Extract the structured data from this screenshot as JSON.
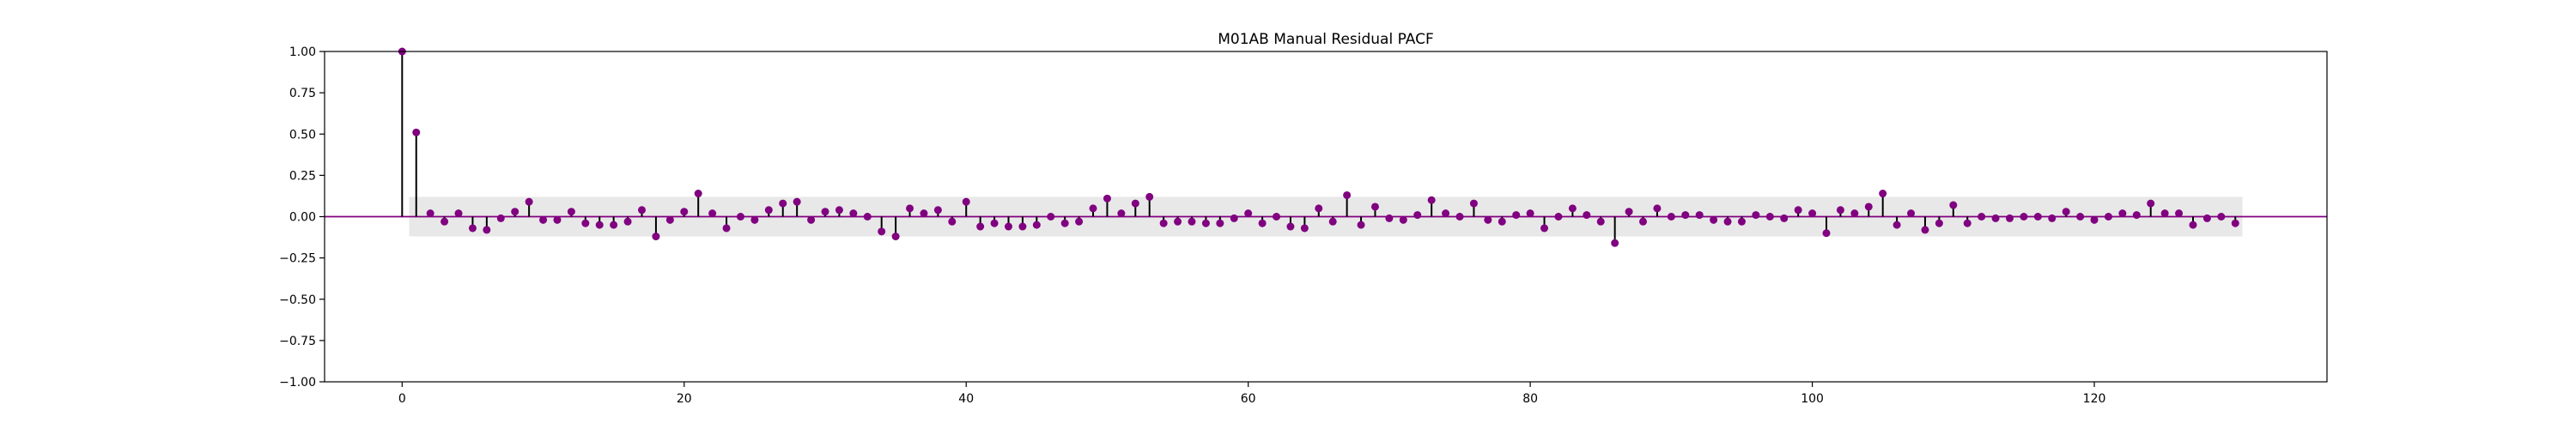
{
  "chart_data": {
    "type": "stem",
    "title": "M01AB Manual Residual PACF",
    "xlabel": "",
    "ylabel": "",
    "xlim": [
      -5.5,
      136.5
    ],
    "ylim": [
      -1.0,
      1.0
    ],
    "xticks": [
      0,
      20,
      40,
      60,
      80,
      100,
      120
    ],
    "yticks": [
      -1.0,
      -0.75,
      -0.5,
      -0.25,
      0.0,
      0.25,
      0.5,
      0.75,
      1.0
    ],
    "ytick_labels": [
      "−1.00",
      "−0.75",
      "−0.50",
      "−0.25",
      "0.00",
      "0.25",
      "0.50",
      "0.75",
      "1.00"
    ],
    "confidence_band": {
      "x": [
        0.5,
        130.5
      ],
      "lower": -0.12,
      "upper": 0.12,
      "color": "#e8e8e8"
    },
    "colors": {
      "marker": "#800080",
      "baseline": "#800080",
      "stem": "#000000"
    },
    "grid": false,
    "series": [
      {
        "x": [
          0,
          1,
          2,
          3,
          4,
          5,
          6,
          7,
          8,
          9,
          10,
          11,
          12,
          13,
          14,
          15,
          16,
          17,
          18,
          19,
          20,
          21,
          22,
          23,
          24,
          25,
          26,
          27,
          28,
          29,
          30,
          31,
          32,
          33,
          34,
          35,
          36,
          37,
          38,
          39,
          40,
          41,
          42,
          43,
          44,
          45,
          46,
          47,
          48,
          49,
          50,
          51,
          52,
          53,
          54,
          55,
          56,
          57,
          58,
          59,
          60,
          61,
          62,
          63,
          64,
          65,
          66,
          67,
          68,
          69,
          70,
          71,
          72,
          73,
          74,
          75,
          76,
          77,
          78,
          79,
          80,
          81,
          82,
          83,
          84,
          85,
          86,
          87,
          88,
          89,
          90,
          91,
          92,
          93,
          94,
          95,
          96,
          97,
          98,
          99,
          100,
          101,
          102,
          103,
          104,
          105,
          106,
          107,
          108,
          109,
          110,
          111,
          112,
          113,
          114,
          115,
          116,
          117,
          118,
          119,
          120,
          121,
          122,
          123,
          124,
          125,
          126,
          127,
          128,
          129,
          130
        ],
        "y": [
          1.0,
          0.51,
          0.02,
          -0.03,
          0.02,
          -0.07,
          -0.08,
          -0.01,
          0.03,
          0.09,
          -0.02,
          -0.02,
          0.03,
          -0.04,
          -0.05,
          -0.05,
          -0.03,
          0.04,
          -0.12,
          -0.02,
          0.03,
          0.14,
          0.02,
          -0.07,
          0.0,
          -0.02,
          0.04,
          0.08,
          0.09,
          -0.02,
          0.03,
          0.04,
          0.02,
          0.0,
          -0.09,
          -0.12,
          0.05,
          0.02,
          0.04,
          -0.03,
          0.09,
          -0.06,
          -0.04,
          -0.06,
          -0.06,
          -0.05,
          0.0,
          -0.04,
          -0.03,
          0.05,
          0.11,
          0.02,
          0.08,
          0.12,
          -0.04,
          -0.03,
          -0.03,
          -0.04,
          -0.04,
          -0.01,
          0.02,
          -0.04,
          0.0,
          -0.06,
          -0.07,
          0.05,
          -0.03,
          0.13,
          -0.05,
          0.06,
          -0.01,
          -0.02,
          0.01,
          0.1,
          0.02,
          0.0,
          0.08,
          -0.02,
          -0.03,
          0.01,
          0.02,
          -0.07,
          0.0,
          0.05,
          0.01,
          -0.03,
          -0.16,
          0.03,
          -0.03,
          0.05,
          0.0,
          0.01,
          0.01,
          -0.02,
          -0.03,
          -0.03,
          0.01,
          0.0,
          -0.01,
          0.04,
          0.02,
          -0.1,
          0.04,
          0.02,
          0.06,
          0.14,
          -0.05,
          0.02,
          -0.08,
          -0.04,
          0.07,
          -0.04,
          0.0,
          -0.01,
          -0.01,
          0.0,
          0.0,
          -0.01,
          0.03,
          0.0,
          -0.02,
          0.0,
          0.02,
          0.01,
          0.08,
          0.02,
          0.02,
          -0.05,
          -0.01,
          0.0,
          -0.04
        ]
      }
    ]
  }
}
